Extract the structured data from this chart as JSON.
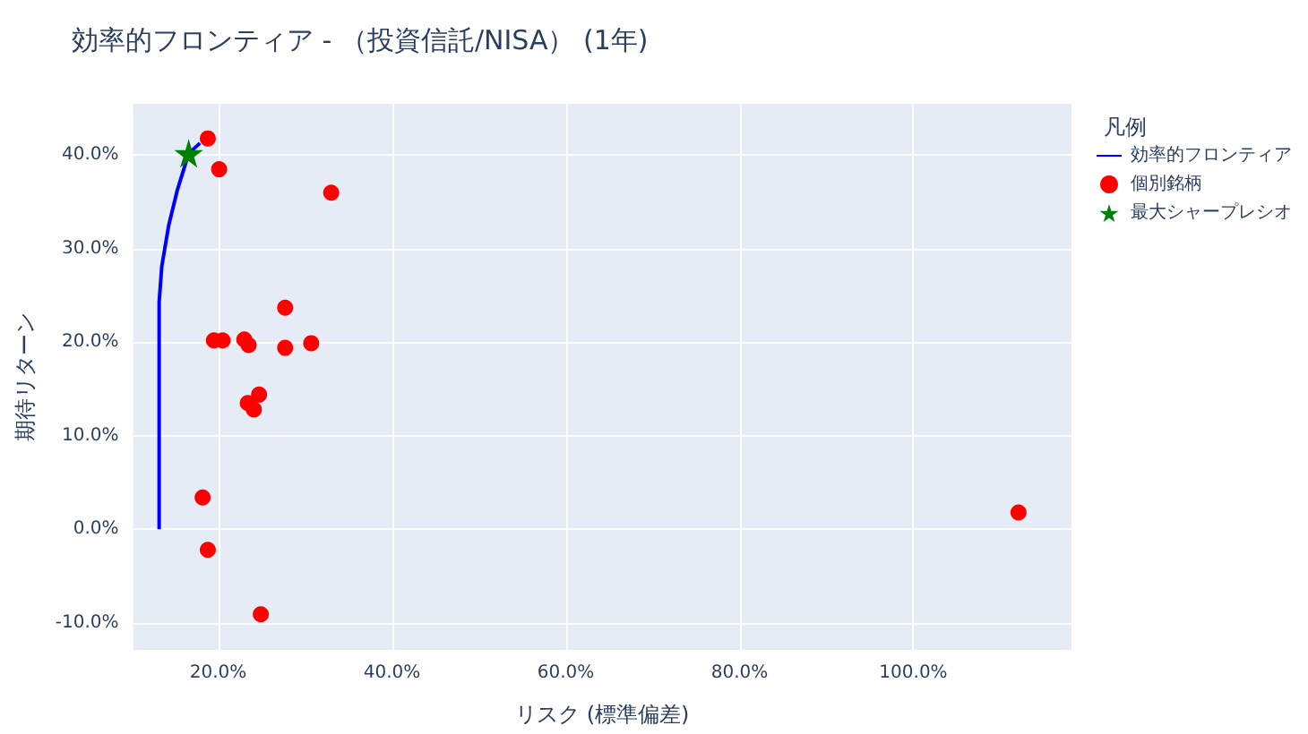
{
  "chart_data": {
    "type": "scatter",
    "title": "効率的フロンティア - （投資信託/NISA） (1年)",
    "xlabel": "リスク (標準偏差)",
    "ylabel": "期待リターン",
    "legend_title": "凡例",
    "legend": "top right",
    "grid": true,
    "xlim": [
      10.2,
      118.2
    ],
    "ylim": [
      -12.9,
      45.5
    ],
    "xticks": [
      {
        "value": 20,
        "label": "20.0%"
      },
      {
        "value": 40,
        "label": "40.0%"
      },
      {
        "value": 60,
        "label": "60.0%"
      },
      {
        "value": 80,
        "label": "80.0%"
      },
      {
        "value": 100,
        "label": "100.0%"
      }
    ],
    "yticks": [
      {
        "value": -10,
        "label": "-10.0%"
      },
      {
        "value": 0,
        "label": "0.0%"
      },
      {
        "value": 10,
        "label": "10.0%"
      },
      {
        "value": 20,
        "label": "20.0%"
      },
      {
        "value": 30,
        "label": "30.0%"
      },
      {
        "value": 40,
        "label": "40.0%"
      }
    ],
    "series": [
      {
        "name": "効率的フロンティア",
        "type": "line",
        "marker": "none",
        "color": "#0000ff",
        "x": [
          13.2,
          13.2,
          13.5,
          14.3,
          15.3,
          16.6,
          17.9
        ],
        "values": [
          0,
          24.3,
          28.1,
          32.5,
          36.3,
          40.2,
          41.3
        ]
      },
      {
        "name": "個別銘柄",
        "marker": "circle",
        "color": "#ff0000",
        "x": [
          18.8,
          20.1,
          33.0,
          27.7,
          19.5,
          20.5,
          23.0,
          23.5,
          27.7,
          30.7,
          24.7,
          23.4,
          24.1,
          18.2,
          18.8,
          24.9,
          112.1
        ],
        "values": [
          41.8,
          38.5,
          36.0,
          23.7,
          20.2,
          20.2,
          20.3,
          19.7,
          19.4,
          19.9,
          14.4,
          13.5,
          12.8,
          3.4,
          -2.2,
          -9.1,
          1.8
        ]
      },
      {
        "name": "最大シャープレシオ",
        "marker": "star",
        "color": "#008000",
        "x": [
          16.6
        ],
        "values": [
          40.2
        ]
      }
    ]
  }
}
